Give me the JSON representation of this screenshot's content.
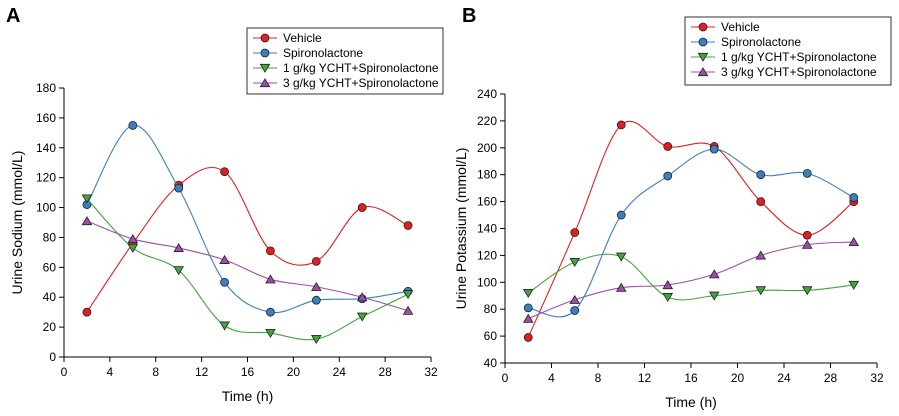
{
  "chart_data": [
    {
      "type": "line",
      "panel": "A",
      "xlabel": "Time (h)",
      "ylabel": "Urine Sodium (mmol/L)",
      "xlim": [
        0,
        32
      ],
      "ylim": [
        0,
        180
      ],
      "xticks": [
        0,
        4,
        8,
        12,
        16,
        20,
        24,
        28,
        32
      ],
      "yticks": [
        0,
        20,
        40,
        60,
        80,
        100,
        120,
        140,
        160,
        180
      ],
      "legend_position": "top-right",
      "x": [
        2,
        6,
        10,
        14,
        18,
        22,
        26,
        30
      ],
      "series": [
        {
          "name": "Vehicle",
          "color": "#e02020",
          "marker": "circle",
          "values": [
            30,
            76,
            115,
            124,
            71,
            64,
            100,
            88
          ]
        },
        {
          "name": "Spironolactone",
          "color": "#3a7fc0",
          "marker": "circle",
          "values": [
            102,
            155,
            113,
            50,
            30,
            38,
            39,
            44
          ]
        },
        {
          "name": "1 g/kg YCHT+Spironolactone",
          "color": "#3da63d",
          "marker": "triangle-down",
          "values": [
            106,
            73,
            58,
            21,
            16,
            12,
            27,
            42
          ]
        },
        {
          "name": "3 g/kg YCHT+Spironolactone",
          "color": "#9b4fa6",
          "marker": "triangle-up",
          "values": [
            91,
            79,
            73,
            65,
            52,
            47,
            40,
            31
          ]
        }
      ]
    },
    {
      "type": "line",
      "panel": "B",
      "xlabel": "Time (h)",
      "ylabel": "Urine Potassium (mmol/L)",
      "xlim": [
        0,
        32
      ],
      "ylim": [
        40,
        240
      ],
      "xticks": [
        0,
        4,
        8,
        12,
        16,
        20,
        24,
        28,
        32
      ],
      "yticks": [
        40,
        60,
        80,
        100,
        120,
        140,
        160,
        180,
        200,
        220,
        240
      ],
      "legend_position": "top-right",
      "x": [
        2,
        6,
        10,
        14,
        18,
        22,
        26,
        30
      ],
      "series": [
        {
          "name": "Vehicle",
          "color": "#e02020",
          "marker": "circle",
          "values": [
            59,
            137,
            217,
            201,
            201,
            160,
            135,
            160
          ]
        },
        {
          "name": "Spironolactone",
          "color": "#3a7fc0",
          "marker": "circle",
          "values": [
            81,
            79,
            150,
            179,
            199,
            180,
            181,
            163
          ]
        },
        {
          "name": "1 g/kg YCHT+Spironolactone",
          "color": "#3da63d",
          "marker": "triangle-down",
          "values": [
            92,
            115,
            119,
            89,
            90,
            94,
            94,
            98
          ]
        },
        {
          "name": "3 g/kg YCHT+Spironolactone",
          "color": "#9b4fa6",
          "marker": "triangle-up",
          "values": [
            73,
            87,
            96,
            98,
            106,
            120,
            128,
            130
          ]
        }
      ]
    }
  ]
}
